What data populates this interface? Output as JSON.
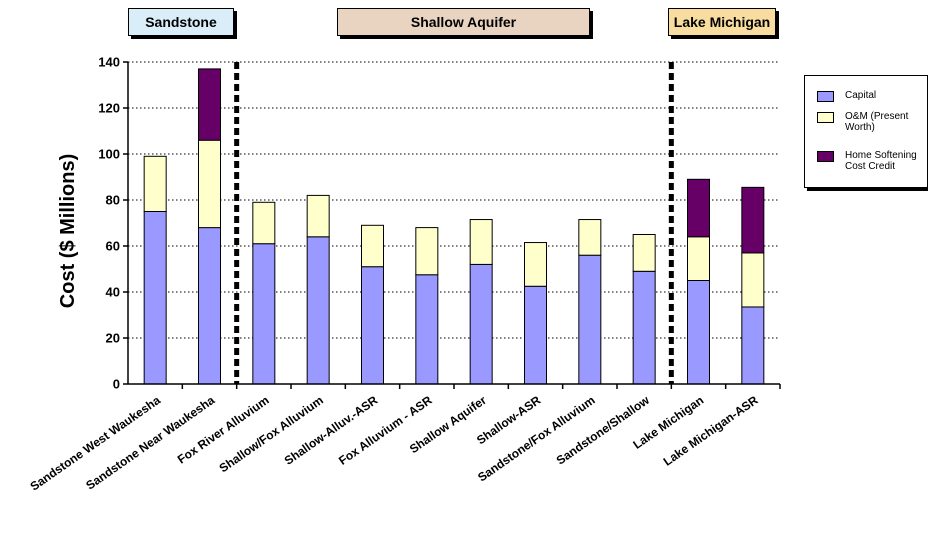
{
  "headers": [
    {
      "label": "Sandstone",
      "color": "#D9EEF8"
    },
    {
      "label": "Shallow Aquifer",
      "color": "#E8D4C0"
    },
    {
      "label": "Lake Michigan",
      "color": "#F8DCA0"
    }
  ],
  "colors": {
    "capital": "#9999FF",
    "om": "#FFFFCC",
    "softening": "#660066",
    "divider": "#000000"
  },
  "legend": [
    {
      "key": "capital",
      "label": "Capital"
    },
    {
      "key": "om",
      "label": "O&M (Present Worth)"
    },
    {
      "key": "softening",
      "label": "Home Softening Cost Credit"
    }
  ],
  "chart_data": {
    "type": "bar",
    "stacked": true,
    "title": "",
    "xlabel": "",
    "ylabel": "Cost ($ Millions)",
    "ylim": [
      0,
      140
    ],
    "yticks": [
      0,
      20,
      40,
      60,
      80,
      100,
      120,
      140
    ],
    "grid": "horizontal dotted",
    "legend_position": "right",
    "categories": [
      "Sandstone West Waukesha",
      "Sandstone Near Waukesha",
      "Fox River Alluvium",
      "Shallow/Fox Alluvium",
      "Shallow-Alluv.-ASR",
      "Fox Alluvium - ASR",
      "Shallow Aquifer",
      "Shallow-ASR",
      "Sandstone/Fox Alluvium",
      "Sandstone/Shallow",
      "Lake Michigan",
      "Lake Michigan-ASR"
    ],
    "series": [
      {
        "name": "Capital",
        "values": [
          75,
          68,
          61,
          64,
          51,
          47.5,
          52,
          42.5,
          56,
          49,
          45,
          33.5
        ]
      },
      {
        "name": "O&M (Present Worth)",
        "values": [
          24,
          38,
          18,
          18,
          18,
          20.5,
          19.5,
          19,
          15.5,
          16,
          19,
          23.5
        ]
      },
      {
        "name": "Home Softening Cost Credit",
        "values": [
          0,
          31,
          0,
          0,
          0,
          0,
          0,
          0,
          0,
          0,
          25,
          28.5
        ]
      }
    ],
    "group_dividers_after": [
      1,
      9
    ]
  }
}
